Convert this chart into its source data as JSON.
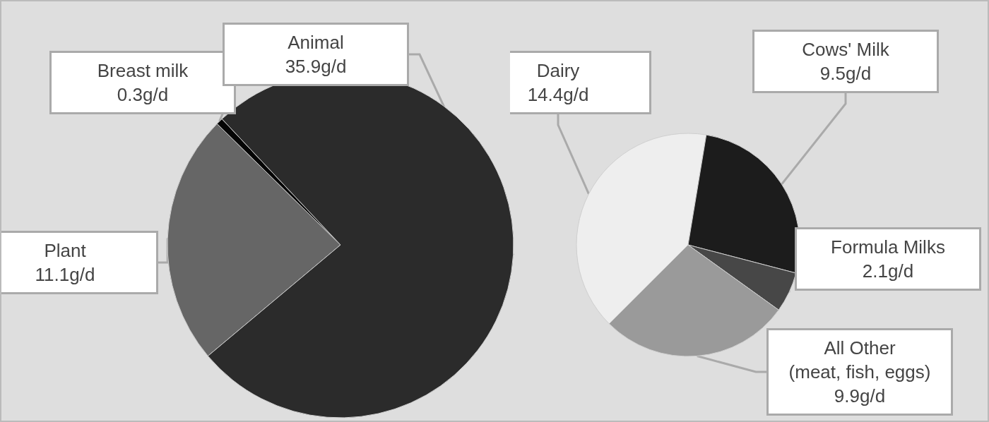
{
  "chart_data": [
    {
      "type": "pie",
      "categories": [
        "Plant",
        "Breast milk",
        "Animal"
      ],
      "values": [
        11.1,
        0.3,
        35.9
      ],
      "colors": [
        "#666666",
        "#050505",
        "#2b2b2b"
      ],
      "value_labels": [
        "11.1g/d",
        "0.3g/d",
        "35.9g/d"
      ]
    },
    {
      "type": "pie",
      "categories": [
        "Dairy",
        "Cows' Milk",
        "Formula Milks",
        "All Other\n(meat, fish, eggs)"
      ],
      "values": [
        14.4,
        9.5,
        2.1,
        9.9
      ],
      "colors": [
        "#eeeeee",
        "#1c1c1c",
        "#474747",
        "#9a9a9a"
      ],
      "value_labels": [
        "14.4g/d",
        "9.5g/d",
        "2.1g/d",
        "9.9g/d"
      ]
    }
  ]
}
